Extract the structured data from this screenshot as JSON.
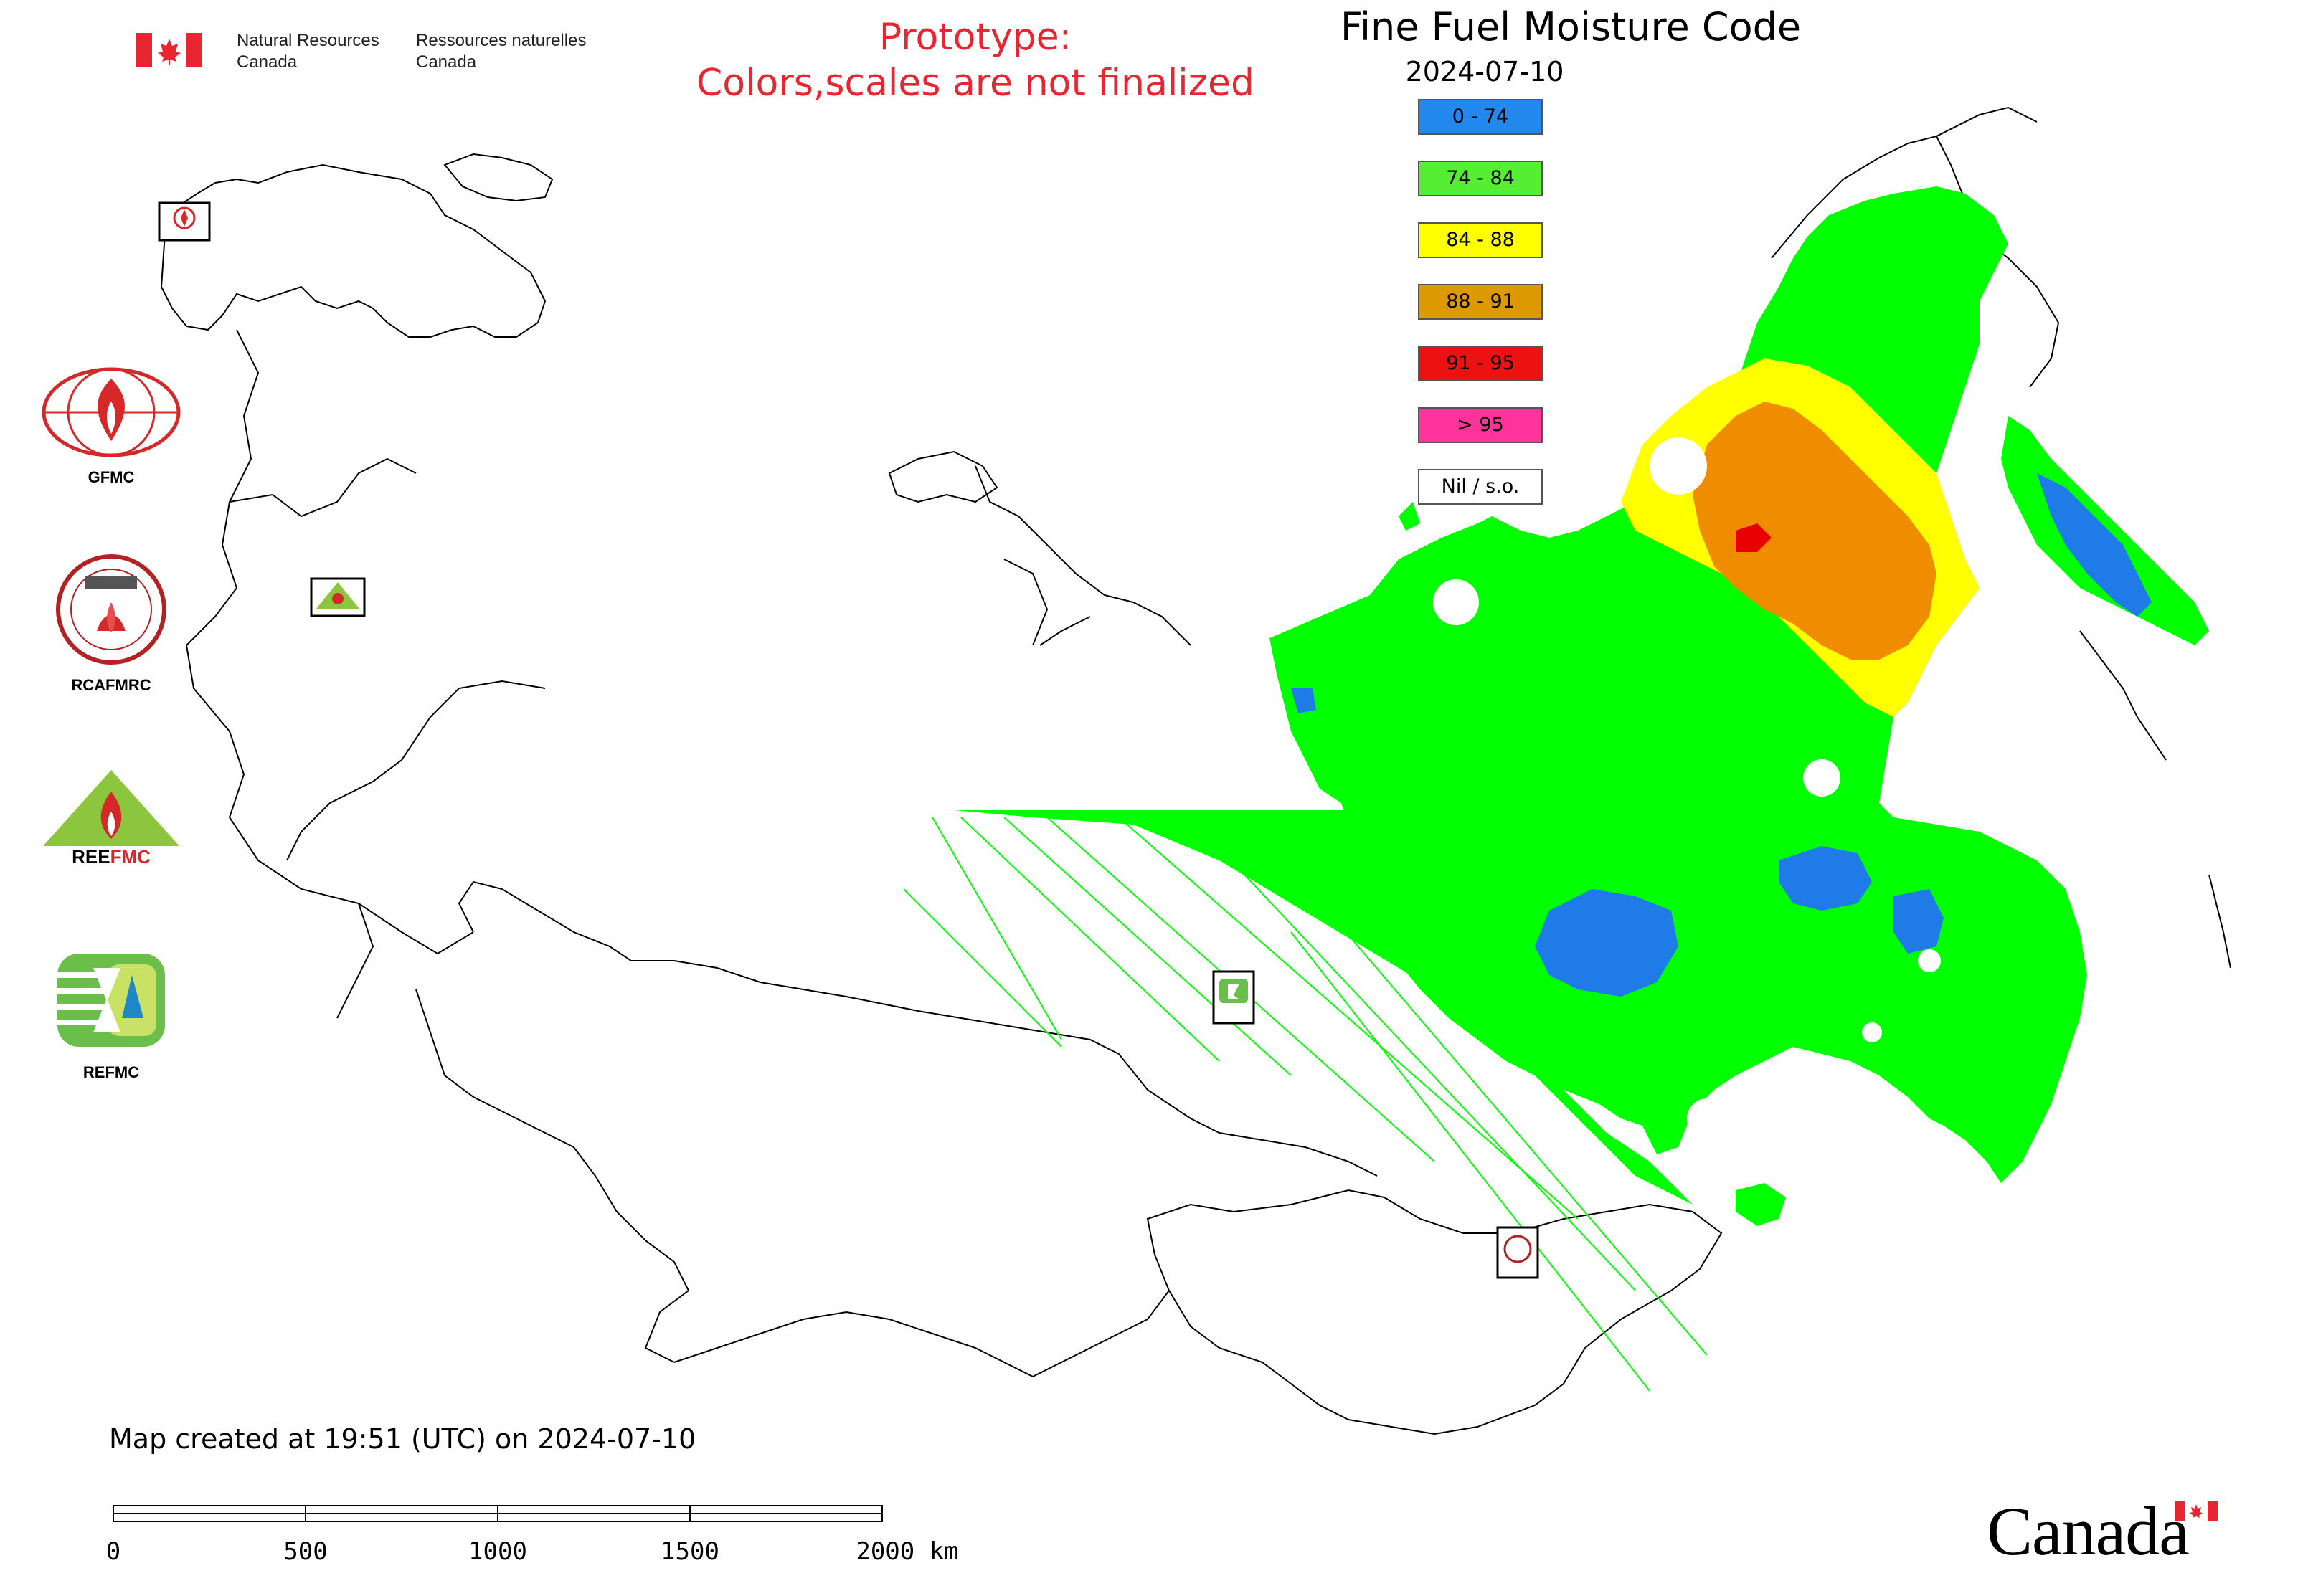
{
  "header": {
    "org_en_line1": "Natural Resources",
    "org_en_line2": "Canada",
    "org_fr_line1": "Ressources naturelles",
    "org_fr_line2": "Canada"
  },
  "prototype_notice": {
    "line1": "Prototype:",
    "line2": "Colors,scales are not finalized"
  },
  "map": {
    "title": "Fine Fuel Moisture Code",
    "date": "2024-07-10",
    "legend": [
      {
        "label": "0 - 74",
        "color": "#2288ee"
      },
      {
        "label": "74 - 84",
        "color": "#55ee33"
      },
      {
        "label": "84 - 88",
        "color": "#ffff00"
      },
      {
        "label": "88 - 91",
        "color": "#dd9900"
      },
      {
        "label": "91 - 95",
        "color": "#ee1111"
      },
      {
        "label": "> 95",
        "color": "#ff3399"
      },
      {
        "label": "Nil / s.o.",
        "color": "#ffffff"
      }
    ],
    "created_note": "Map created at 19:51 (UTC) on 2024-07-10",
    "scale_labels": [
      "0",
      "500",
      "1000",
      "1500",
      "2000 km"
    ]
  },
  "organizations": [
    {
      "label": "GFMC",
      "icon": "gfmc-logo-icon"
    },
    {
      "label": "RCAFMRC",
      "icon": "rcafmrc-logo-icon"
    },
    {
      "label": "",
      "icon": "reefmc-logo-icon"
    },
    {
      "label": "REFMC",
      "icon": "refmc-logo-icon"
    }
  ],
  "footer": {
    "wordmark": "Canada"
  },
  "colors": {
    "green": "#00ff00",
    "blue": "#1e7be8",
    "yellow": "#ffff00",
    "orange": "#f08c00",
    "red": "#e80000",
    "outline": "#000000",
    "brand_red": "#e8262f"
  }
}
